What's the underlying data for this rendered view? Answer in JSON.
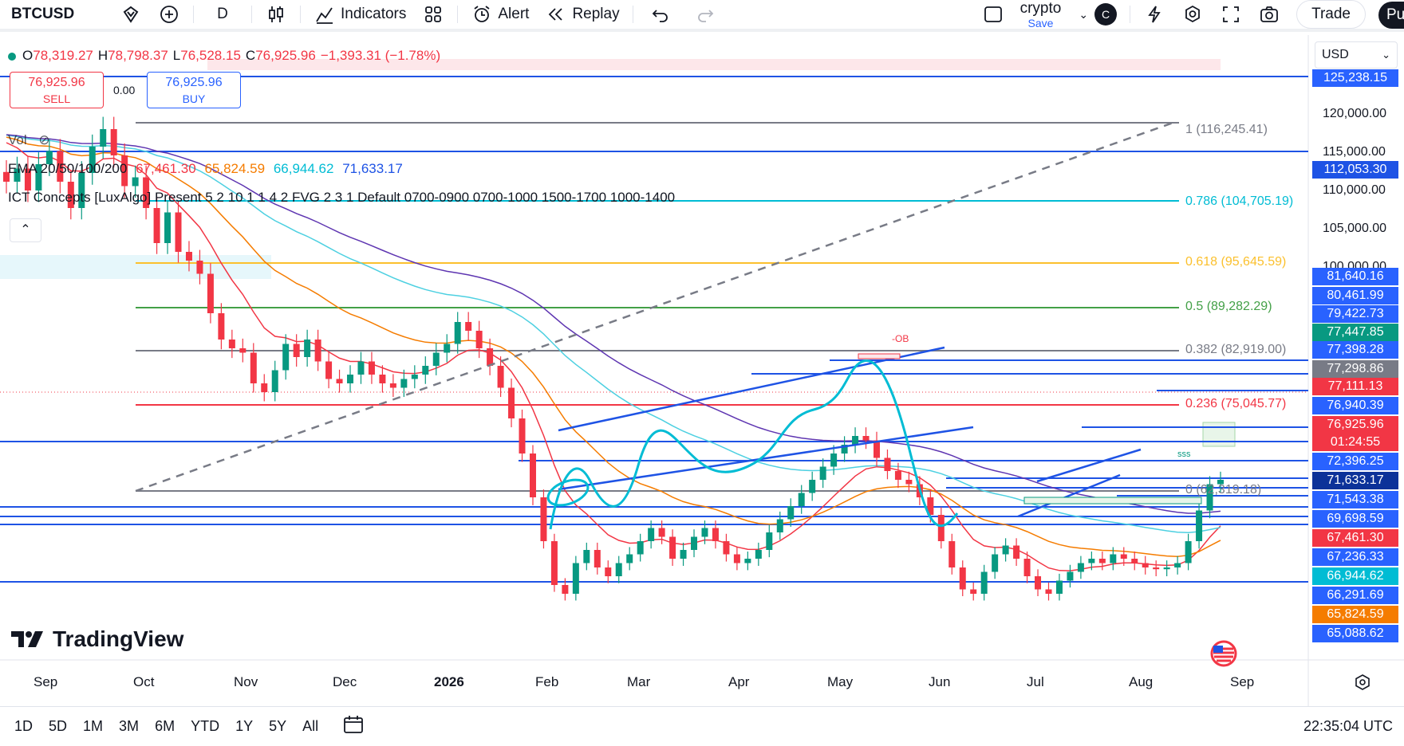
{
  "toolbar": {
    "symbol": "BTCUSD",
    "interval": "D",
    "indicators_label": "Indicators",
    "alert_label": "Alert",
    "replay_label": "Replay",
    "layout_name": "crypto",
    "save_label": "Save",
    "avatar_letter": "C",
    "trade_label": "Trade",
    "publish_label": "Pu"
  },
  "legend": {
    "o_label": "O",
    "o_value": "78,319.27",
    "h_label": "H",
    "h_value": "78,798.37",
    "l_label": "L",
    "l_value": "76,528.15",
    "c_label": "C",
    "c_value": "76,925.96",
    "change": "−1,393.31 (−1.78%)",
    "vol_label": "Vol",
    "ema_title": "EMA 20/50/100/200",
    "ema20": "67,461.30",
    "ema50": "65,824.59",
    "ema100": "66,944.62",
    "ema200": "71,633.17",
    "ict": "ICT Concepts [LuxAlgo] Present 5 2 10 1 1 4 2 FVG 2 3 1 Default 0700-0900 0700-1000 1500-1700 1000-1400"
  },
  "trade": {
    "sell_price": "76,925.96",
    "sell_label": "SELL",
    "spread": "0.00",
    "buy_price": "76,925.96",
    "buy_label": "BUY"
  },
  "currency": "USD",
  "price_axis": {
    "ticks": [
      "120,000.00",
      "115,000.00",
      "110,000.00",
      "105,000.00",
      "100,000.00"
    ],
    "tags": [
      {
        "text": "125,238.15",
        "color": "#2962ff"
      },
      {
        "text": "112,053.30",
        "color": "#1e53e5"
      },
      {
        "text": "81,640.16",
        "color": "#2962ff"
      },
      {
        "text": "80,461.99",
        "color": "#2962ff"
      },
      {
        "text": "79,422.73",
        "color": "#2962ff"
      },
      {
        "text": "77,447.85",
        "color": "#089981"
      },
      {
        "text": "77,398.28",
        "color": "#2962ff"
      },
      {
        "text": "77,298.86",
        "color": "#787b86"
      },
      {
        "text": "77,111.13",
        "color": "#f23645"
      },
      {
        "text": "76,940.39",
        "color": "#2962ff"
      },
      {
        "text": "76,925.96",
        "color": "#f23645"
      },
      {
        "text": "01:24:55",
        "color": "#f23645"
      },
      {
        "text": "72,396.25",
        "color": "#2962ff"
      },
      {
        "text": "71,633.17",
        "color": "#0c3299"
      },
      {
        "text": "71,543.38",
        "color": "#2962ff"
      },
      {
        "text": "69,698.59",
        "color": "#2962ff"
      },
      {
        "text": "67,461.30",
        "color": "#f23645"
      },
      {
        "text": "67,236.33",
        "color": "#2962ff"
      },
      {
        "text": "66,944.62",
        "color": "#00bcd4"
      },
      {
        "text": "66,291.69",
        "color": "#2962ff"
      },
      {
        "text": "65,824.59",
        "color": "#f57c00"
      },
      {
        "text": "65,088.62",
        "color": "#2962ff"
      }
    ]
  },
  "fib_levels": [
    {
      "label": "1 (116,245.41)",
      "color": "#787b86"
    },
    {
      "label": "0.786 (104,705.19)",
      "color": "#00bcd4"
    },
    {
      "label": "0.618 (95,645.59)",
      "color": "#fbc02d"
    },
    {
      "label": "0.5 (89,282.29)",
      "color": "#43a047"
    },
    {
      "label": "0.382 (82,919.00)",
      "color": "#787b86"
    },
    {
      "label": "0.236 (75,045.77)",
      "color": "#f23645"
    },
    {
      "label": "0 (62,319.18)",
      "color": "#787b86"
    }
  ],
  "annotations": {
    "ob_label": "-OB",
    "sss_label": "sss"
  },
  "x_axis": [
    "Sep",
    "Oct",
    "Nov",
    "Dec",
    "2026",
    "Feb",
    "Mar",
    "Apr",
    "May",
    "Jun",
    "Jul",
    "Aug",
    "Sep"
  ],
  "brand": "TradingView",
  "ranges": [
    "1D",
    "5D",
    "1M",
    "3M",
    "6M",
    "YTD",
    "1Y",
    "5Y",
    "All"
  ],
  "clock": "22:35:04 UTC",
  "colors": {
    "up": "#089981",
    "down": "#f23645",
    "ema20": "#f23645",
    "ema50": "#f57c00",
    "ema100": "#4dd0e1",
    "ema200": "#5e35b1",
    "blue_line": "#1e53e5"
  },
  "chart_data": {
    "type": "candlestick",
    "symbol": "BTCUSD",
    "interval": "D",
    "last": 76925.96,
    "open": 78319.27,
    "high": 78798.37,
    "low": 76528.15,
    "close": 76925.96,
    "price_range": [
      63000,
      127000
    ],
    "emas": {
      "ema20": 67461.3,
      "ema50": 65824.59,
      "ema100": 66944.62,
      "ema200": 71633.17
    },
    "approx_closes": [
      111000,
      112500,
      110000,
      113000,
      114500,
      111000,
      108000,
      112000,
      115000,
      117000,
      114000,
      110500,
      111500,
      108000,
      104000,
      107500,
      103000,
      102000,
      100500,
      96000,
      93000,
      92000,
      91500,
      88000,
      87000,
      89500,
      92500,
      91000,
      93000,
      90500,
      88500,
      88000,
      89000,
      90500,
      89000,
      88000,
      87500,
      88500,
      89000,
      90000,
      91500,
      92500,
      95000,
      94000,
      92000,
      90000,
      87500,
      84000,
      80000,
      75000,
      70000,
      65000,
      64000,
      67500,
      69000,
      67000,
      66000,
      67500,
      68500,
      70000,
      71500,
      70500,
      68000,
      69000,
      70500,
      71500,
      70000,
      68500,
      67500,
      68000,
      69000,
      71000,
      72500,
      74000,
      75500,
      77000,
      78500,
      80000,
      81000,
      82000,
      81500,
      79500,
      78000,
      77000,
      76500,
      75000,
      73000,
      70000,
      67000,
      64500,
      64000,
      66500,
      68500,
      69500,
      68000,
      66000,
      64500,
      64000,
      65500,
      66500,
      67500,
      68000,
      67500,
      68500,
      68000,
      67500,
      67000,
      66800,
      67000,
      67500,
      70000,
      73500,
      76500,
      77000
    ]
  }
}
